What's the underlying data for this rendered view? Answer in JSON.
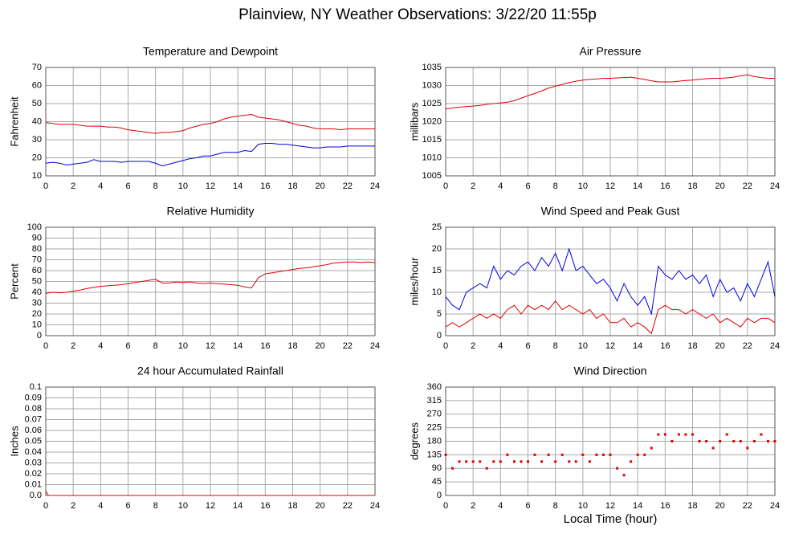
{
  "title": "Plainview, NY Weather Observations: 3/22/20 11:55p",
  "chart_data": [
    {
      "type": "line",
      "title": "Temperature and Dewpoint",
      "ylabel": "Fahrenheit",
      "grid": true,
      "xlim": [
        0,
        24
      ],
      "xticks": [
        0,
        2,
        4,
        6,
        8,
        10,
        12,
        14,
        16,
        18,
        20,
        22,
        24
      ],
      "ylim": [
        10,
        70
      ],
      "yticks": [
        10,
        20,
        30,
        40,
        50,
        60,
        70
      ],
      "x": [
        0,
        0.5,
        1,
        1.5,
        2,
        2.5,
        3,
        3.5,
        4,
        4.5,
        5,
        5.5,
        6,
        6.5,
        7,
        7.5,
        8,
        8.5,
        9,
        9.5,
        10,
        10.5,
        11,
        11.5,
        12,
        12.5,
        13,
        13.5,
        14,
        14.5,
        15,
        15.5,
        16,
        16.5,
        17,
        17.5,
        18,
        18.5,
        19,
        19.5,
        20,
        20.5,
        21,
        21.5,
        22,
        22.5,
        23,
        23.5,
        24
      ],
      "series": [
        {
          "color": "#e00000",
          "values": [
            39.5,
            39,
            38.5,
            38.5,
            38.5,
            38,
            37.5,
            37.5,
            37.5,
            37,
            37,
            36.5,
            35.5,
            35,
            34.5,
            34,
            33.5,
            34,
            34,
            34.5,
            35,
            36.5,
            37.5,
            38.5,
            39,
            40,
            41.5,
            42.5,
            43,
            43.5,
            44,
            42.5,
            42,
            41.5,
            41,
            40,
            39,
            38,
            37.5,
            36.5,
            36,
            36,
            36,
            35.5,
            36,
            36,
            36,
            36,
            36
          ]
        },
        {
          "color": "#0000e0",
          "values": [
            17,
            17.5,
            17,
            16,
            16.5,
            17,
            17.5,
            19,
            18,
            18,
            18,
            17.5,
            18,
            18,
            18,
            18,
            17,
            15.5,
            16.5,
            17.5,
            18.5,
            19.5,
            20,
            21,
            21,
            22,
            23,
            23,
            23,
            24,
            23.5,
            27.5,
            28,
            28,
            27.5,
            27.5,
            27,
            26.5,
            26,
            25.5,
            25.5,
            26,
            26,
            26,
            26.5,
            26.5,
            26.5,
            26.5,
            26.5
          ]
        }
      ]
    },
    {
      "type": "line",
      "title": "Air Pressure",
      "ylabel": "millibars",
      "grid": true,
      "xlim": [
        0,
        24
      ],
      "xticks": [
        0,
        2,
        4,
        6,
        8,
        10,
        12,
        14,
        16,
        18,
        20,
        22,
        24
      ],
      "ylim": [
        1005,
        1035
      ],
      "yticks": [
        1005,
        1010,
        1015,
        1020,
        1025,
        1030,
        1035
      ],
      "x": [
        0,
        0.5,
        1,
        1.5,
        2,
        2.5,
        3,
        3.5,
        4,
        4.5,
        5,
        5.5,
        6,
        6.5,
        7,
        7.5,
        8,
        8.5,
        9,
        9.5,
        10,
        10.5,
        11,
        11.5,
        12,
        12.5,
        13,
        13.5,
        14,
        14.5,
        15,
        15.5,
        16,
        16.5,
        17,
        17.5,
        18,
        18.5,
        19,
        19.5,
        20,
        20.5,
        21,
        21.5,
        22,
        22.5,
        23,
        23.5,
        24
      ],
      "series": [
        {
          "color": "#e00000",
          "values": [
            1023.5,
            1023.8,
            1024,
            1024.2,
            1024.3,
            1024.5,
            1024.8,
            1025,
            1025.2,
            1025.4,
            1025.8,
            1026.5,
            1027.2,
            1027.8,
            1028.5,
            1029.3,
            1029.8,
            1030.3,
            1030.8,
            1031.2,
            1031.5,
            1031.7,
            1031.8,
            1032,
            1032,
            1032.1,
            1032.2,
            1032.3,
            1032,
            1031.7,
            1031.3,
            1031,
            1031,
            1031,
            1031.2,
            1031.4,
            1031.5,
            1031.7,
            1031.9,
            1032,
            1032,
            1032.1,
            1032.3,
            1032.7,
            1033,
            1032.5,
            1032.2,
            1032,
            1032
          ]
        }
      ]
    },
    {
      "type": "line",
      "title": "Relative Humidity",
      "ylabel": "Percent",
      "grid": true,
      "xlim": [
        0,
        24
      ],
      "xticks": [
        0,
        2,
        4,
        6,
        8,
        10,
        12,
        14,
        16,
        18,
        20,
        22,
        24
      ],
      "ylim": [
        0,
        100
      ],
      "yticks": [
        0,
        10,
        20,
        30,
        40,
        50,
        60,
        70,
        80,
        90,
        100
      ],
      "x": [
        0,
        0.5,
        1,
        1.5,
        2,
        2.5,
        3,
        3.5,
        4,
        4.5,
        5,
        5.5,
        6,
        6.5,
        7,
        7.5,
        8,
        8.5,
        9,
        9.5,
        10,
        10.5,
        11,
        11.5,
        12,
        12.5,
        13,
        13.5,
        14,
        14.5,
        15,
        15.5,
        16,
        16.5,
        17,
        17.5,
        18,
        18.5,
        19,
        19.5,
        20,
        20.5,
        21,
        21.5,
        22,
        22.5,
        23,
        23.5,
        24
      ],
      "series": [
        {
          "color": "#e00000",
          "values": [
            39,
            40,
            39.5,
            40,
            41,
            42,
            43.5,
            44.5,
            45.5,
            46,
            46.5,
            47,
            48,
            49,
            50,
            51,
            52,
            48.5,
            48.5,
            49.5,
            49,
            49.5,
            48.5,
            48,
            48.5,
            48,
            47.5,
            47,
            46.5,
            45,
            44,
            53.5,
            57,
            58,
            59,
            60,
            61,
            62,
            62.5,
            63.5,
            64.5,
            65.5,
            67,
            67.5,
            68,
            68,
            67.5,
            68,
            67.5
          ]
        }
      ]
    },
    {
      "type": "line",
      "title": "Wind Speed and Peak Gust",
      "ylabel": "miles/hour",
      "grid": true,
      "xlim": [
        0,
        24
      ],
      "xticks": [
        0,
        2,
        4,
        6,
        8,
        10,
        12,
        14,
        16,
        18,
        20,
        22,
        24
      ],
      "ylim": [
        0,
        25
      ],
      "yticks": [
        0,
        5,
        10,
        15,
        20,
        25
      ],
      "x": [
        0,
        0.5,
        1,
        1.5,
        2,
        2.5,
        3,
        3.5,
        4,
        4.5,
        5,
        5.5,
        6,
        6.5,
        7,
        7.5,
        8,
        8.5,
        9,
        9.5,
        10,
        10.5,
        11,
        11.5,
        12,
        12.5,
        13,
        13.5,
        14,
        14.5,
        15,
        15.5,
        16,
        16.5,
        17,
        17.5,
        18,
        18.5,
        19,
        19.5,
        20,
        20.5,
        21,
        21.5,
        22,
        22.5,
        23,
        23.5,
        24
      ],
      "series": [
        {
          "color": "#0000e0",
          "values": [
            9,
            7,
            6,
            10,
            11,
            12,
            11,
            16,
            13,
            15,
            14,
            16,
            17,
            15,
            18,
            16,
            19,
            15,
            20,
            15,
            16,
            14,
            12,
            13,
            11,
            8,
            12,
            9,
            7,
            9,
            5,
            16,
            14,
            13,
            15,
            13,
            14,
            12,
            14,
            9,
            13,
            10,
            11,
            8,
            12,
            9,
            13,
            17,
            9
          ]
        },
        {
          "color": "#e00000",
          "values": [
            2,
            3,
            2,
            3,
            4,
            5,
            4,
            5,
            4,
            6,
            7,
            5,
            7,
            6,
            7,
            6,
            8,
            6,
            7,
            6,
            5,
            6,
            4,
            5,
            3,
            3,
            4,
            2,
            3,
            2,
            0.5,
            6,
            7,
            6,
            6,
            5,
            6,
            5,
            4,
            5,
            3,
            4,
            3,
            2,
            4,
            3,
            4,
            4,
            3
          ]
        }
      ]
    },
    {
      "type": "line",
      "title": "24 hour Accumulated Rainfall",
      "ylabel": "Inches",
      "grid": true,
      "xlim": [
        0,
        24
      ],
      "xticks": [
        0,
        2,
        4,
        6,
        8,
        10,
        12,
        14,
        16,
        18,
        20,
        22,
        24
      ],
      "ylim": [
        0,
        0.1
      ],
      "yticks": [
        {
          "value": 0,
          "label": "0.0"
        },
        0.01,
        0.02,
        0.03,
        0.04,
        0.05,
        0.06,
        0.07,
        0.08,
        0.09,
        0.1
      ],
      "x": [
        0,
        0.2,
        24
      ],
      "series": [
        {
          "color": "#e00000",
          "values": [
            0.004,
            0,
            0
          ]
        }
      ]
    },
    {
      "type": "scatter",
      "title": "Wind Direction",
      "ylabel": "degrees",
      "xlabel": "Local Time (hour)",
      "grid": true,
      "xlim": [
        0,
        24
      ],
      "xticks": [
        0,
        2,
        4,
        6,
        8,
        10,
        12,
        14,
        16,
        18,
        20,
        22,
        24
      ],
      "ylim": [
        0,
        360
      ],
      "yticks": [
        0,
        45,
        90,
        135,
        180,
        225,
        270,
        315,
        360
      ],
      "x": [
        0,
        0.5,
        1,
        1.5,
        2,
        2.5,
        3,
        3.5,
        4,
        4.5,
        5,
        5.5,
        6,
        6.5,
        7,
        7.5,
        8,
        8.5,
        9,
        9.5,
        10,
        10.5,
        11,
        11.5,
        12,
        12.5,
        13,
        13.5,
        14,
        14.5,
        15,
        15.5,
        16,
        16.5,
        17,
        17.5,
        18,
        18.5,
        19,
        19.5,
        20,
        20.5,
        21,
        21.5,
        22,
        22.5,
        23,
        23.5,
        24
      ],
      "series": [
        {
          "color": "#e00000",
          "values": [
            135,
            90,
            112.5,
            112.5,
            112.5,
            112.5,
            90,
            112.5,
            112.5,
            135,
            112.5,
            112.5,
            112.5,
            135,
            112.5,
            135,
            112.5,
            135,
            112.5,
            112.5,
            135,
            112.5,
            135,
            135,
            135,
            90,
            67.5,
            112.5,
            135,
            135,
            157.5,
            202.5,
            202.5,
            180,
            202.5,
            202.5,
            202.5,
            180,
            180,
            157.5,
            180,
            202.5,
            180,
            180,
            157.5,
            180,
            202.5,
            180,
            180
          ]
        }
      ]
    }
  ]
}
